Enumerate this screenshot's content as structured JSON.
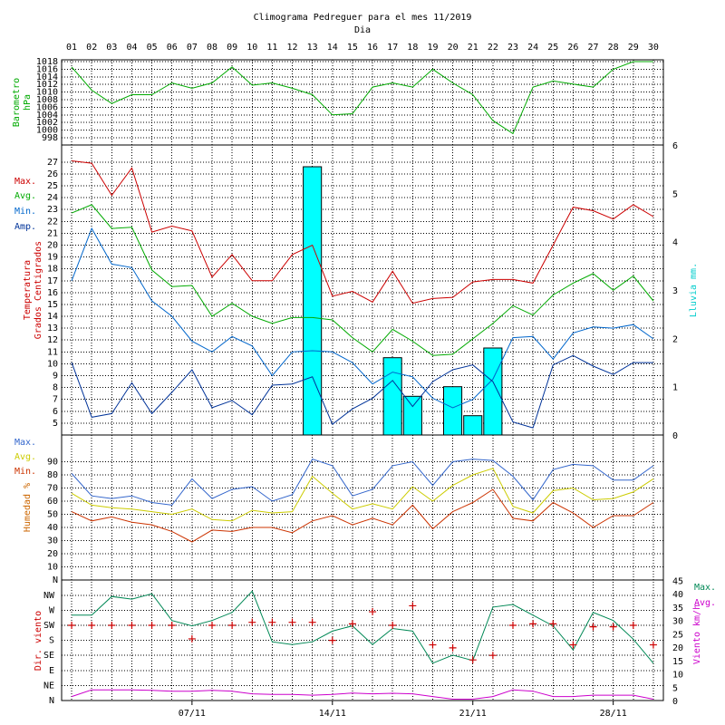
{
  "chart_data": [
    {
      "type": "line",
      "panel": "barometer",
      "title": "Climograma Pedreguer para el mes 11/2019",
      "xlabel": "Dia",
      "ylabel": "Barometro hPa",
      "ylabel_lines": [
        "Barometro",
        "hPa"
      ],
      "ylim": [
        998,
        1018
      ],
      "y_ticks": [
        998,
        1000,
        1002,
        1004,
        1006,
        1008,
        1010,
        1012,
        1014,
        1016,
        1018
      ],
      "x": [
        "01",
        "02",
        "03",
        "04",
        "05",
        "06",
        "07",
        "08",
        "09",
        "10",
        "11",
        "12",
        "13",
        "14",
        "15",
        "16",
        "17",
        "18",
        "19",
        "20",
        "21",
        "22",
        "23",
        "24",
        "25",
        "26",
        "27",
        "28",
        "29",
        "30"
      ],
      "grid": true,
      "series": [
        {
          "color": "#00aa00",
          "values": [
            1016.6,
            1010.5,
            1007.0,
            1009.3,
            1009.3,
            1012.4,
            1011.0,
            1012.4,
            1016.6,
            1011.8,
            1012.4,
            1011.0,
            1009.3,
            1004.0,
            1004.3,
            1011.3,
            1012.4,
            1011.3,
            1016.0,
            1012.4,
            1009.3,
            1002.5,
            999.1,
            1011.3,
            1012.9,
            1012.1,
            1011.3,
            1016.0,
            1018.0,
            1018.0
          ]
        }
      ]
    },
    {
      "type": "line",
      "panel": "temperature",
      "ylabel_lines": [
        "Temperatura",
        "Grados Centigrados"
      ],
      "y2label": "Lluvia mm.",
      "ylim": [
        4,
        28
      ],
      "y_ticks": [
        5,
        6,
        7,
        8,
        9,
        10,
        11,
        12,
        13,
        14,
        15,
        16,
        17,
        18,
        19,
        20,
        21,
        22,
        23,
        24,
        25,
        26,
        27
      ],
      "y2lim": [
        0,
        6
      ],
      "y2_ticks": [
        0,
        1,
        2,
        3,
        4,
        5,
        6
      ],
      "legend": [
        "Max.",
        "Avg.",
        "Min.",
        "Amp."
      ],
      "legend_position": "left",
      "grid": true,
      "series": [
        {
          "name": "Max.",
          "color": "#cc0000",
          "values": [
            27.1,
            26.9,
            24.2,
            26.5,
            21.1,
            21.6,
            21.2,
            17.3,
            19.2,
            17.0,
            17.0,
            19.2,
            20.0,
            15.7,
            16.1,
            15.2,
            17.8,
            15.1,
            15.5,
            15.6,
            16.9,
            17.1,
            17.1,
            16.8,
            20.0,
            23.2,
            22.9,
            22.2,
            23.4,
            22.4
          ]
        },
        {
          "name": "Avg.",
          "color": "#00aa00",
          "values": [
            22.7,
            23.4,
            21.4,
            21.5,
            17.9,
            16.5,
            16.6,
            14.0,
            15.1,
            14.0,
            13.4,
            13.9,
            13.9,
            13.7,
            12.2,
            11.0,
            12.9,
            11.9,
            10.7,
            10.8,
            12.1,
            13.4,
            14.9,
            14.1,
            15.8,
            16.8,
            17.6,
            16.2,
            17.4,
            15.3
          ]
        },
        {
          "name": "Min.",
          "color": "#0066cc",
          "values": [
            17.0,
            21.4,
            18.4,
            18.1,
            15.3,
            14.0,
            11.9,
            11.0,
            12.3,
            11.5,
            9.0,
            11.0,
            11.1,
            11.0,
            10.1,
            8.3,
            9.3,
            8.9,
            7.1,
            6.3,
            7.0,
            8.7,
            12.2,
            12.3,
            10.4,
            12.6,
            13.1,
            13.0,
            13.3,
            12.1
          ]
        },
        {
          "name": "Amp.",
          "color": "#003399",
          "values": [
            10.1,
            5.5,
            5.8,
            8.4,
            5.8,
            7.6,
            9.5,
            6.3,
            6.9,
            5.7,
            8.2,
            8.3,
            8.9,
            4.9,
            6.2,
            7.1,
            8.6,
            6.4,
            8.5,
            9.5,
            9.9,
            8.5,
            5.1,
            4.6,
            9.9,
            10.7,
            9.8,
            9.1,
            10.1,
            10.1
          ]
        }
      ],
      "rain": {
        "name": "Lluvia mm.",
        "color": "#00ffff",
        "days": [
          "13",
          "17",
          "18",
          "20",
          "21",
          "22"
        ],
        "values": [
          5.55,
          1.6,
          0.8,
          1.0,
          0.4,
          1.8
        ]
      }
    },
    {
      "type": "line",
      "panel": "humidity",
      "ylabel": "Humedad %",
      "ylim": [
        0,
        100
      ],
      "y_ticks": [
        "N",
        "10",
        "20",
        "30",
        "40",
        "50",
        "60",
        "70",
        "80",
        "90"
      ],
      "legend": [
        "Max.",
        "Avg.",
        "Min."
      ],
      "legend_position": "left",
      "grid": true,
      "series": [
        {
          "name": "Max.",
          "color": "#3366cc",
          "values": [
            81,
            64,
            62,
            64,
            59,
            57,
            77,
            62,
            69,
            71,
            60,
            65,
            92,
            87,
            64,
            69,
            87,
            90,
            72,
            90,
            92,
            91,
            79,
            61,
            84,
            88,
            87,
            76,
            76,
            87
          ]
        },
        {
          "name": "Avg.",
          "color": "#cccc00",
          "values": [
            66,
            57,
            55,
            54,
            52,
            50,
            54,
            46,
            45,
            53,
            51,
            52,
            79,
            66,
            54,
            58,
            54,
            71,
            60,
            72,
            80,
            85,
            56,
            51,
            68,
            70,
            61,
            62,
            67,
            77
          ]
        },
        {
          "name": "Min.",
          "color": "#cc3300",
          "values": [
            52,
            45,
            48,
            44,
            42,
            37,
            29,
            38,
            37,
            40,
            40,
            36,
            45,
            49,
            42,
            47,
            42,
            57,
            39,
            52,
            59,
            69,
            47,
            45,
            59,
            51,
            40,
            49,
            49,
            59
          ]
        }
      ]
    },
    {
      "type": "line",
      "panel": "wind",
      "ylabel": "Dir. viento",
      "y2label": "Viento km/h",
      "y_ticks": [
        "N",
        "NE",
        "E",
        "SE",
        "S",
        "SW",
        "W",
        "NW"
      ],
      "y2lim": [
        0,
        45
      ],
      "y2_ticks": [
        0,
        5,
        10,
        15,
        20,
        25,
        30,
        35,
        40,
        45
      ],
      "legend": [
        "Max.",
        "Avg."
      ],
      "legend_position": "right",
      "x_ticks": [
        "07/11",
        "14/11",
        "21/11",
        "28/11"
      ],
      "grid": true,
      "series": [
        {
          "name": "Max.",
          "color": "#008855",
          "values": [
            32,
            32,
            39,
            38,
            40,
            30,
            28,
            30,
            33,
            41,
            22,
            21,
            22,
            26,
            28,
            21,
            27,
            26,
            14,
            17,
            15,
            35,
            36,
            32,
            28,
            19,
            33,
            30,
            23,
            14
          ]
        },
        {
          "name": "Avg.",
          "color": "#cc00cc",
          "values": [
            1.5,
            4,
            4,
            4,
            3.8,
            3.5,
            3.5,
            3.8,
            3.5,
            2.5,
            2.3,
            2.3,
            2,
            2.3,
            2.8,
            2.5,
            2.7,
            2.5,
            1.5,
            0.5,
            0.5,
            1.5,
            4,
            3.5,
            1.5,
            1.5,
            2,
            2,
            2,
            0.5
          ]
        }
      ],
      "direction": {
        "color": "#cc0000",
        "marker": "+",
        "values": [
          5,
          5,
          5,
          5,
          5,
          5,
          4.1,
          5,
          5,
          5.2,
          5.2,
          5.2,
          5.2,
          4,
          5.1,
          5.9,
          5,
          6.3,
          3.7,
          3.5,
          2.7,
          3,
          5,
          5.1,
          5.1,
          3.7,
          4.9,
          4.9,
          5,
          3.7
        ]
      }
    }
  ]
}
